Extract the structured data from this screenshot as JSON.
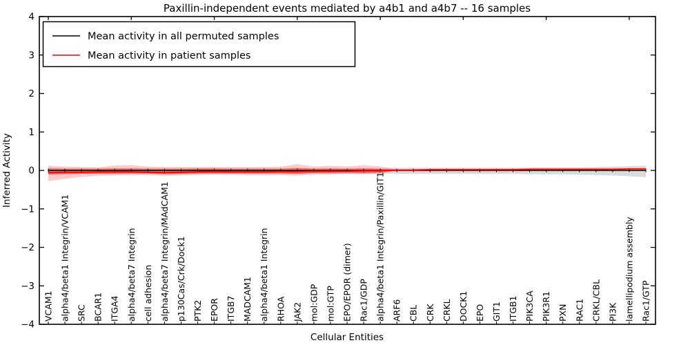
{
  "figure": {
    "title": "Paxillin-independent events mediated by a4b1 and a4b7 -- 16 samples",
    "xlabel": "Cellular Entities",
    "ylabel": "Inferred Activity"
  },
  "legend": {
    "position": "upper left",
    "entries": [
      {
        "label": "Mean activity in all permuted samples",
        "color": "#000000"
      },
      {
        "label": "Mean activity in patient samples",
        "color": "#ff0000"
      }
    ]
  },
  "colors": {
    "axes": "#000000",
    "background": "#ffffff",
    "permuted_line": "#000000",
    "patient_line": "#ff0000",
    "permuted_band": "#999999",
    "patient_band": "#ff0000"
  },
  "chart_data": {
    "type": "line",
    "title": "Paxillin-independent events mediated by a4b1 and a4b7 -- 16 samples",
    "xlabel": "Cellular Entities",
    "ylabel": "Inferred Activity",
    "ylim": [
      -4,
      4
    ],
    "yticks": [
      -4,
      -3,
      -2,
      -1,
      0,
      1,
      2,
      3,
      4
    ],
    "grid": false,
    "legend_position": "upper left",
    "categories": [
      "VCAM1",
      "alpha4/beta1 Integrin/VCAM1",
      "SRC",
      "BCAR1",
      "ITGA4",
      "alpha4/beta7 Integrin",
      "cell adhesion",
      "alpha4/beta7 Integrin/MAdCAM1",
      "p130Cas/Crk/Dock1",
      "PTK2",
      "EPOR",
      "ITGB7",
      "MADCAM1",
      "alpha4/beta1 Integrin",
      "RHOA",
      "JAK2",
      "mol:GDP",
      "mol:GTP",
      "EPO/EPOR (dimer)",
      "Rac1/GDP",
      "alpha4/beta1 Integrin/Paxillin/GIT1",
      "ARF6",
      "CBL",
      "CRK",
      "CRKL",
      "DOCK1",
      "EPO",
      "GIT1",
      "ITGB1",
      "PIK3CA",
      "PIK3R1",
      "PXN",
      "RAC1",
      "CRKL/CBL",
      "PI3K",
      "lamellipodium assembly",
      "Rac1/GTP"
    ],
    "series": [
      {
        "name": "Mean activity in all permuted samples",
        "color": "#000000",
        "marker": "plus-tick",
        "values": [
          0,
          0,
          0,
          0,
          0,
          0,
          0,
          0,
          0,
          0,
          0,
          0,
          0,
          0,
          0,
          0,
          0,
          0,
          0,
          0,
          0,
          0,
          0,
          0,
          0,
          0,
          0,
          0,
          0,
          0,
          0,
          0,
          0,
          0,
          0,
          0,
          0
        ]
      },
      {
        "name": "Mean activity in patient samples",
        "color": "#ff0000",
        "marker": "none",
        "values": [
          -0.06,
          -0.05,
          -0.05,
          -0.04,
          -0.04,
          -0.04,
          -0.05,
          -0.06,
          -0.05,
          -0.04,
          -0.03,
          -0.04,
          -0.04,
          -0.04,
          -0.03,
          -0.03,
          -0.02,
          -0.02,
          -0.02,
          -0.01,
          -0.01,
          0.01,
          0.01,
          0.02,
          0.02,
          0.02,
          0.02,
          0.02,
          0.02,
          0.03,
          0.03,
          0.03,
          0.03,
          0.03,
          0.03,
          0.04,
          0.04
        ]
      }
    ],
    "bands": [
      {
        "name": "permuted-range",
        "color": "#999999",
        "opacity": 0.35,
        "upper": [
          0.07,
          0.06,
          0.06,
          0.06,
          0.06,
          0.06,
          0.06,
          0.06,
          0.06,
          0.06,
          0.06,
          0.06,
          0.06,
          0.06,
          0.06,
          0.07,
          0.06,
          0.06,
          0.06,
          0.06,
          0.06,
          0.07,
          0.07,
          0.07,
          0.07,
          0.07,
          0.07,
          0.07,
          0.07,
          0.08,
          0.08,
          0.08,
          0.08,
          0.09,
          0.1,
          0.11,
          0.12
        ],
        "lower": [
          -0.09,
          -0.08,
          -0.08,
          -0.08,
          -0.08,
          -0.08,
          -0.08,
          -0.08,
          -0.08,
          -0.08,
          -0.08,
          -0.08,
          -0.08,
          -0.08,
          -0.08,
          -0.09,
          -0.08,
          -0.08,
          -0.08,
          -0.08,
          -0.08,
          -0.09,
          -0.09,
          -0.09,
          -0.09,
          -0.09,
          -0.09,
          -0.09,
          -0.09,
          -0.1,
          -0.1,
          -0.1,
          -0.11,
          -0.12,
          -0.13,
          -0.15,
          -0.18
        ]
      },
      {
        "name": "patient-outer",
        "color": "#ff0000",
        "opacity": 0.2,
        "upper": [
          0.12,
          0.1,
          0.09,
          0.08,
          0.13,
          0.14,
          0.1,
          0.09,
          0.09,
          0.09,
          0.09,
          0.09,
          0.09,
          0.09,
          0.1,
          0.16,
          0.1,
          0.12,
          0.1,
          0.14,
          0.1,
          0.03,
          0.01,
          0.02,
          0.02,
          0.02,
          0.02,
          0.02,
          0.02,
          0.03,
          0.03,
          0.03,
          0.03,
          0.03,
          0.03,
          0.04,
          0.04
        ],
        "lower": [
          -0.28,
          -0.22,
          -0.17,
          -0.14,
          -0.13,
          -0.12,
          -0.12,
          -0.14,
          -0.13,
          -0.12,
          -0.11,
          -0.11,
          -0.12,
          -0.12,
          -0.12,
          -0.14,
          -0.1,
          -0.1,
          -0.09,
          -0.1,
          -0.08,
          -0.01,
          0.01,
          0.02,
          0.02,
          0.02,
          0.02,
          0.02,
          0.02,
          0.03,
          0.03,
          0.03,
          0.03,
          0.03,
          0.03,
          0.04,
          0.04
        ]
      },
      {
        "name": "patient-inner",
        "color": "#ff0000",
        "opacity": 0.4,
        "upper": [
          0.05,
          0.04,
          0.04,
          0.04,
          0.05,
          0.05,
          0.04,
          0.04,
          0.04,
          0.05,
          0.05,
          0.04,
          0.04,
          0.04,
          0.04,
          0.06,
          0.04,
          0.05,
          0.04,
          0.05,
          0.04,
          0.02,
          0.01,
          0.02,
          0.02,
          0.02,
          0.02,
          0.02,
          0.02,
          0.03,
          0.03,
          0.03,
          0.03,
          0.03,
          0.03,
          0.04,
          0.04
        ],
        "lower": [
          -0.11,
          -0.1,
          -0.09,
          -0.09,
          -0.09,
          -0.08,
          -0.08,
          -0.1,
          -0.09,
          -0.08,
          -0.08,
          -0.08,
          -0.08,
          -0.08,
          -0.08,
          -0.09,
          -0.07,
          -0.07,
          -0.06,
          -0.07,
          -0.06,
          0.0,
          0.01,
          0.02,
          0.02,
          0.02,
          0.02,
          0.02,
          0.02,
          0.03,
          0.03,
          0.03,
          0.03,
          0.03,
          0.03,
          0.04,
          0.04
        ]
      }
    ],
    "reference_lines": [
      {
        "name": "zero-line",
        "y": 0,
        "style": "dashed",
        "color": "#000000"
      }
    ]
  }
}
